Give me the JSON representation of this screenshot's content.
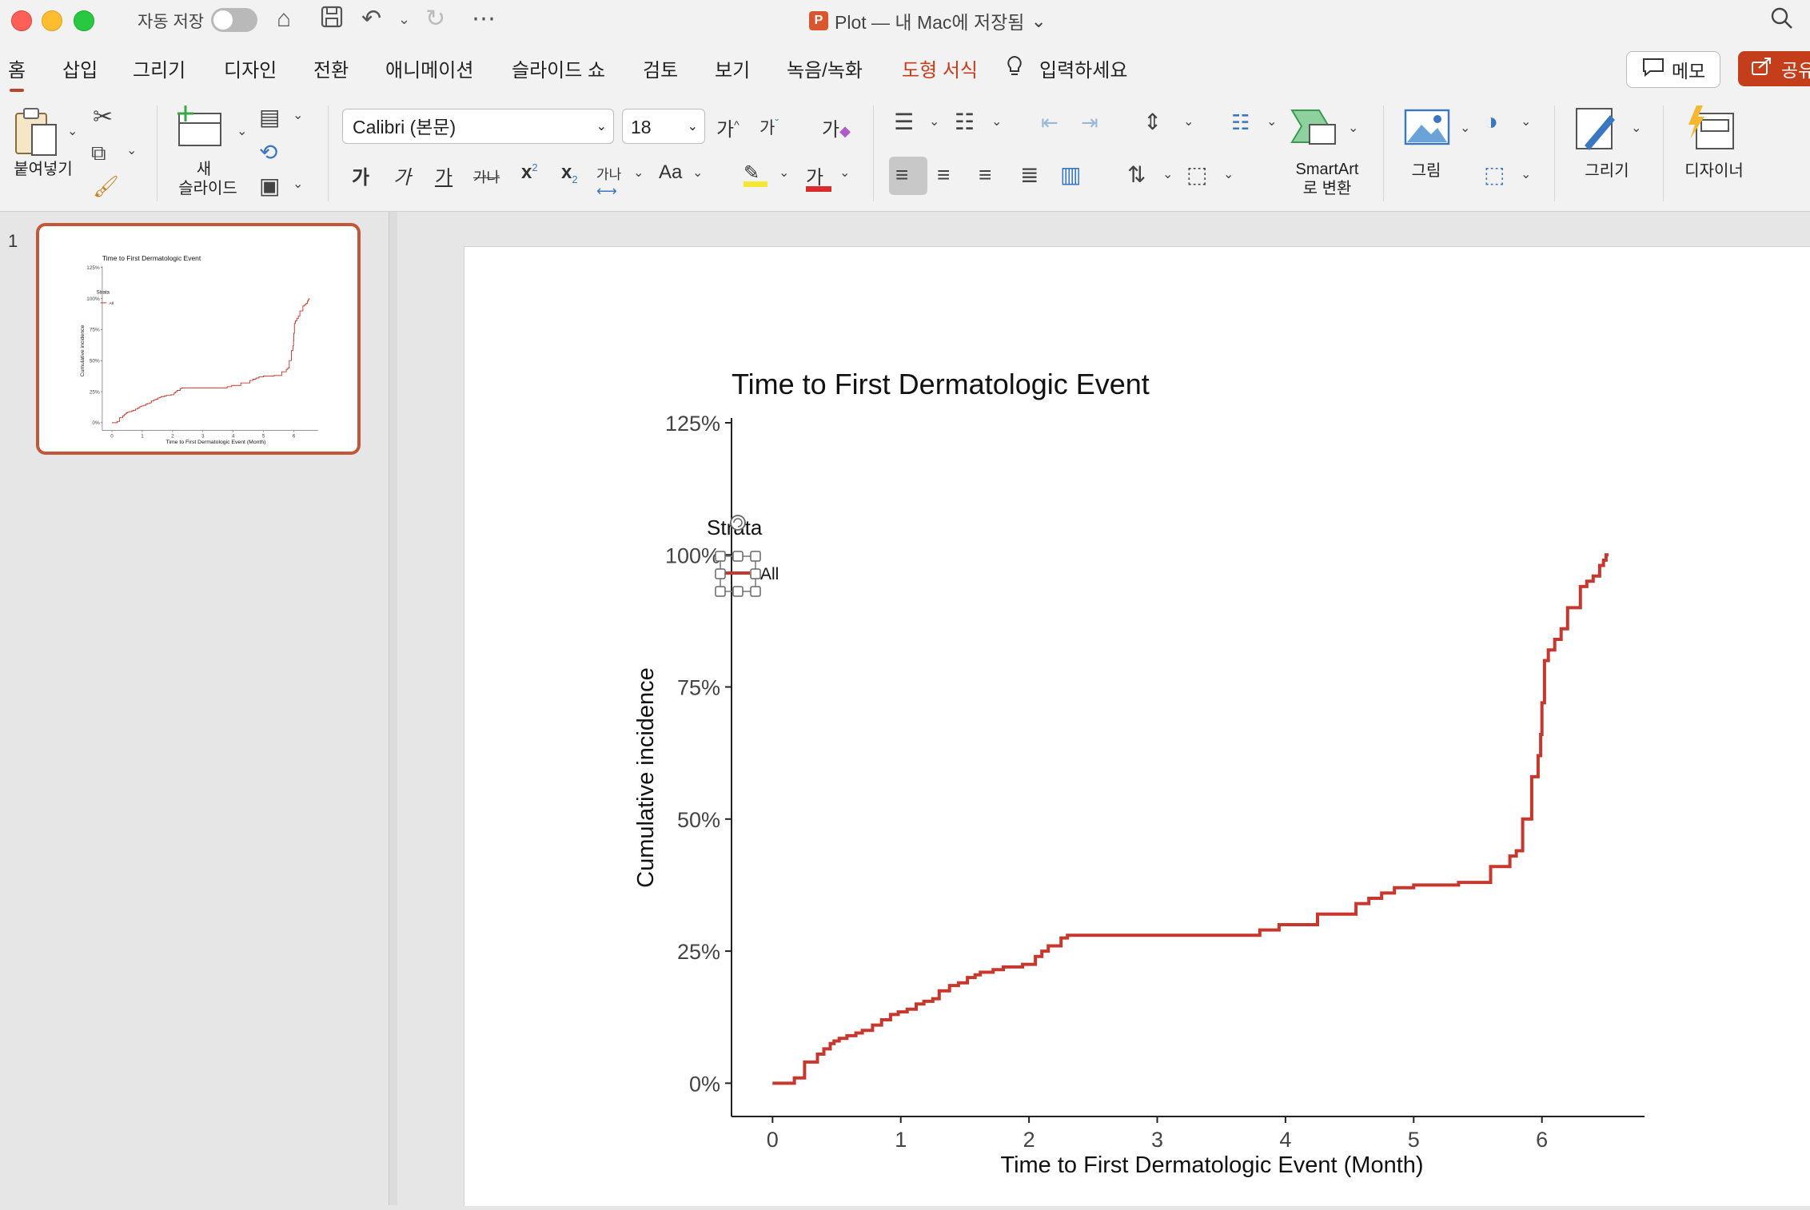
{
  "window": {
    "autosave_label": "자동 저장",
    "title": "Plot — 내 Mac에 저장됨",
    "title_chevron": "⌄"
  },
  "tabs": [
    {
      "label": "홈",
      "active": true
    },
    {
      "label": "삽입"
    },
    {
      "label": "그리기"
    },
    {
      "label": "디자인"
    },
    {
      "label": "전환"
    },
    {
      "label": "애니메이션"
    },
    {
      "label": "슬라이드 쇼"
    },
    {
      "label": "검토"
    },
    {
      "label": "보기"
    },
    {
      "label": "녹음/녹화"
    },
    {
      "label": "도형 서식",
      "accent": true
    },
    {
      "label": "입력하세요"
    }
  ],
  "memo_label": "메모",
  "share_label": "공유",
  "ribbon": {
    "paste_label": "붙여넣기",
    "new_slide_label_1": "새",
    "new_slide_label_2": "슬라이드",
    "font_name": "Calibri (본문)",
    "font_size": "18",
    "grow_font": "가",
    "shrink_font": "가",
    "clear_format": "가",
    "bold": "가",
    "italic": "가",
    "underline": "가",
    "strike": "가나",
    "superscript": "x",
    "subscript": "x",
    "char_spacing": "가나",
    "change_case": "Aa",
    "font_color": "가",
    "smartart_label_1": "SmartArt",
    "smartart_label_2": "로 변환",
    "picture_label": "그림",
    "draw_label": "그리기",
    "designer_label": "디자이너"
  },
  "thumbnail": {
    "slide_number": "1"
  },
  "colors": {
    "accent": "#c43e1c",
    "series_line": "#c8372d"
  },
  "chart_data": {
    "type": "line",
    "title": "Time to First Dermatologic Event",
    "xlabel": "Time to First Dermatologic Event (Month)",
    "ylabel": "Cumulative incidence",
    "xlim": [
      -0.32,
      6.8
    ],
    "ylim": [
      -0.063,
      1.25
    ],
    "x_ticks": [
      "0",
      "1",
      "2",
      "3",
      "4",
      "5",
      "6"
    ],
    "y_ticks": [
      "0%",
      "25%",
      "50%",
      "75%",
      "100%",
      "125%"
    ],
    "grid": false,
    "legend": {
      "title": "Strata",
      "placement": "top-left",
      "entries": [
        "All"
      ]
    },
    "series": [
      {
        "name": "All",
        "step": true,
        "x": [
          0,
          0.17,
          0.25,
          0.35,
          0.4,
          0.45,
          0.48,
          0.52,
          0.58,
          0.65,
          0.7,
          0.78,
          0.85,
          0.92,
          0.98,
          1.05,
          1.12,
          1.18,
          1.25,
          1.3,
          1.38,
          1.45,
          1.52,
          1.58,
          1.62,
          1.72,
          1.8,
          1.95,
          2.05,
          2.1,
          2.15,
          2.25,
          2.3,
          3.8,
          3.95,
          4.25,
          4.55,
          4.65,
          4.75,
          4.85,
          5.0,
          5.35,
          5.6,
          5.75,
          5.8,
          5.85,
          5.92,
          5.97,
          5.99,
          6.0,
          6.02,
          6.05,
          6.1,
          6.15,
          6.2,
          6.3,
          6.35,
          6.4,
          6.45,
          6.48,
          6.5
        ],
        "y": [
          0,
          0.01,
          0.04,
          0.055,
          0.065,
          0.075,
          0.08,
          0.085,
          0.09,
          0.095,
          0.1,
          0.11,
          0.12,
          0.13,
          0.135,
          0.14,
          0.15,
          0.155,
          0.16,
          0.175,
          0.185,
          0.19,
          0.2,
          0.205,
          0.21,
          0.215,
          0.22,
          0.225,
          0.24,
          0.25,
          0.26,
          0.275,
          0.28,
          0.29,
          0.3,
          0.32,
          0.34,
          0.35,
          0.36,
          0.37,
          0.375,
          0.38,
          0.41,
          0.43,
          0.44,
          0.5,
          0.58,
          0.62,
          0.66,
          0.72,
          0.8,
          0.82,
          0.84,
          0.86,
          0.9,
          0.94,
          0.95,
          0.96,
          0.98,
          0.99,
          1.0
        ],
        "end_x": 6.52
      }
    ]
  }
}
